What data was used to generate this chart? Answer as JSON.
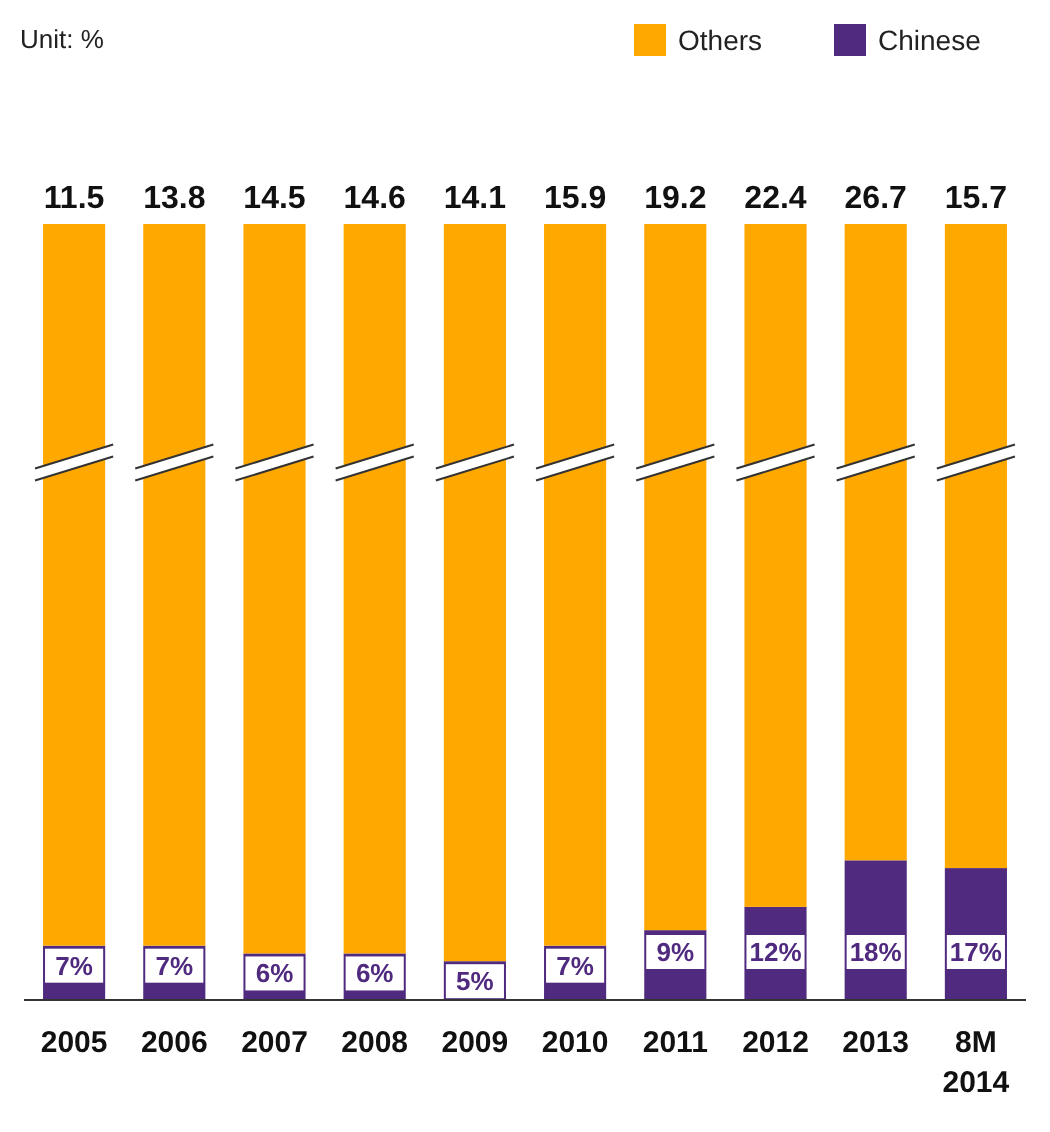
{
  "chart_data": {
    "type": "bar",
    "stacked": true,
    "categories": [
      "2005",
      "2006",
      "2007",
      "2008",
      "2009",
      "2010",
      "2011",
      "2012",
      "2013",
      "8M\n2014"
    ],
    "series": [
      {
        "name": "Chinese",
        "color": "#4f2a7f",
        "values": [
          7,
          7,
          6,
          6,
          5,
          7,
          9,
          12,
          18,
          17
        ],
        "value_labels": [
          "7%",
          "7%",
          "6%",
          "6%",
          "5%",
          "7%",
          "9%",
          "12%",
          "18%",
          "17%"
        ]
      },
      {
        "name": "Others",
        "color": "#ffa800",
        "values": [
          93,
          93,
          94,
          94,
          95,
          93,
          91,
          88,
          82,
          83
        ]
      }
    ],
    "annotations": [
      "Unit: %",
      {
        "text": "11.5",
        "x": "2005",
        "y": 100
      },
      {
        "text": "13.8",
        "x": "2006",
        "y": 100
      },
      {
        "text": "14.5",
        "x": "2007",
        "y": 100
      },
      {
        "text": "14.6",
        "x": "2008",
        "y": 100
      },
      {
        "text": "14.1",
        "x": "2009",
        "y": 100
      },
      {
        "text": "15.9",
        "x": "2010",
        "y": 100
      },
      {
        "text": "19.2",
        "x": "2011",
        "y": 100
      },
      {
        "text": "22.4",
        "x": "2012",
        "y": 100
      },
      {
        "text": "26.7",
        "x": "2013",
        "y": 100
      },
      {
        "text": "15.7",
        "x": "8M\n2014",
        "y": 100
      }
    ],
    "legend": "top right",
    "tick_labels": "x"
  }
}
